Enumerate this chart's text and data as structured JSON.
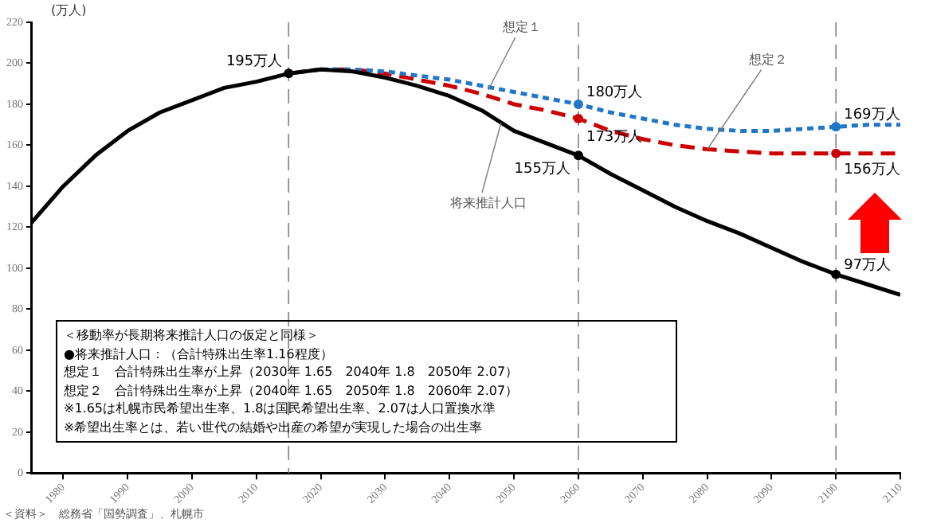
{
  "chart_data": {
    "type": "line",
    "ylabel": "(万人)",
    "xlim": [
      1975,
      2110
    ],
    "xticks": [
      1980,
      1990,
      2000,
      2010,
      2020,
      2030,
      2040,
      2050,
      2060,
      2070,
      2080,
      2090,
      2100,
      2110
    ],
    "ylim": [
      0,
      220
    ],
    "yticks": [
      0,
      20,
      40,
      60,
      80,
      100,
      120,
      140,
      160,
      180,
      200,
      220
    ],
    "grid": false,
    "legend": false,
    "series": [
      {
        "color": "#000000",
        "line_style": "solid",
        "x": [
          1975,
          1980,
          1985,
          1990,
          1995,
          2000,
          2005,
          2010,
          2015,
          2020,
          2025,
          2030,
          2035,
          2040,
          2045,
          2050,
          2055,
          2060,
          2065,
          2070,
          2075,
          2080,
          2085,
          2090,
          2095,
          2100,
          2105,
          2110
        ],
        "values": [
          122,
          140,
          155,
          167,
          176,
          182,
          188,
          191,
          195,
          197,
          196,
          193,
          189,
          184,
          177,
          167,
          161,
          155,
          146,
          138,
          130,
          123,
          117,
          110,
          103,
          97,
          92,
          87
        ],
        "value_labels": [
          null,
          null,
          null,
          null,
          null,
          null,
          null,
          null,
          "195万人",
          null,
          null,
          null,
          null,
          null,
          null,
          null,
          null,
          "155万人",
          null,
          null,
          null,
          null,
          null,
          null,
          null,
          "97万人",
          null,
          null
        ]
      },
      {
        "color": "#2176c7",
        "line_style": "dotted",
        "x": [
          2015,
          2020,
          2025,
          2030,
          2035,
          2040,
          2045,
          2050,
          2055,
          2060,
          2065,
          2070,
          2075,
          2080,
          2085,
          2090,
          2095,
          2100,
          2105,
          2110
        ],
        "values": [
          195,
          197,
          197,
          196,
          194,
          192,
          189,
          186,
          183,
          180,
          176,
          173,
          170,
          168,
          167,
          167,
          168,
          169,
          170,
          170
        ],
        "value_labels": [
          null,
          null,
          null,
          null,
          null,
          null,
          null,
          null,
          null,
          "180万人",
          null,
          null,
          null,
          null,
          null,
          null,
          null,
          "169万人",
          null,
          null
        ]
      },
      {
        "color": "#cc0000",
        "line_style": "dashed",
        "x": [
          2015,
          2020,
          2025,
          2030,
          2035,
          2040,
          2045,
          2050,
          2055,
          2060,
          2065,
          2070,
          2075,
          2080,
          2085,
          2090,
          2095,
          2100,
          2105,
          2110
        ],
        "values": [
          195,
          197,
          197,
          195,
          192,
          189,
          185,
          180,
          177,
          173,
          167,
          163,
          160,
          158,
          157,
          156,
          156,
          156,
          156,
          156
        ],
        "value_labels": [
          null,
          null,
          null,
          null,
          null,
          null,
          null,
          null,
          null,
          "173万人",
          null,
          null,
          null,
          null,
          null,
          null,
          null,
          "156万人",
          null,
          null
        ]
      }
    ],
    "ref_lines": [
      {
        "axis": "x",
        "value": 2015,
        "color": "#808080",
        "line_style": "dashed"
      },
      {
        "axis": "x",
        "value": 2060,
        "color": "#808080",
        "line_style": "dashed"
      },
      {
        "axis": "x",
        "value": 2100,
        "color": "#808080",
        "line_style": "dashed"
      }
    ],
    "annotations": [
      {
        "text": "想定１",
        "x": 2046,
        "y": 187
      },
      {
        "text": "想定２",
        "x": 2080,
        "y": 158
      },
      {
        "text": "将来推計人口",
        "x": 2048,
        "y": 171
      },
      "＜移動率が長期将来推計人口の仮定と同様＞",
      "●将来推計人口：（合計特殊出生率1.16程度）",
      "想定１　合計特殊出生率が上昇（2030年 1.65　2040年 1.8　2050年 2.07）",
      "想定２　合計特殊出生率が上昇（2040年 1.65　2050年 1.8　2060年 2.07）",
      "※1.65は札幌市民希望出生率、1.8は国民希望出生率、2.07は人口置換水準",
      "※希望出生率とは、若い世代の結婚や出産の希望が実現した場合の出生率",
      "＜資料＞　総務省「国勢調査」、札幌市"
    ]
  }
}
